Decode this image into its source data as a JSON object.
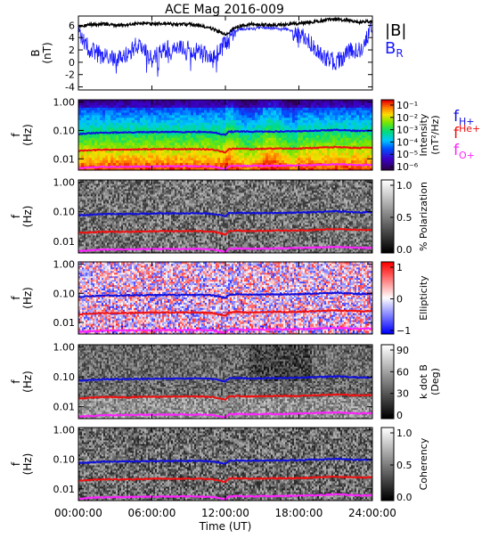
{
  "title": "ACE Mag 2016-009",
  "colors": {
    "btotal": "#000000",
    "br": "#1a1aff",
    "fH": "#1010dd",
    "fHe": "#ee1111",
    "fO": "#ff22ff",
    "axis": "#000000"
  },
  "chart_data": [
    {
      "panel": "b-field",
      "type": "line",
      "ylabel": [
        "B",
        "(nT)"
      ],
      "ylim": [
        -4.5,
        7.5
      ],
      "yticks": [
        "-4",
        "-2",
        "0",
        "2",
        "4",
        "6"
      ],
      "ytick_values": [
        -4,
        -2,
        0,
        2,
        4,
        6
      ],
      "x_hours": [
        0,
        1,
        2,
        3,
        4,
        5,
        6,
        7,
        8,
        9,
        10,
        11,
        12,
        13,
        14,
        15,
        16,
        17,
        18,
        19,
        20,
        21,
        22,
        23,
        24
      ],
      "series": [
        {
          "name": "|B|",
          "color": "#000000",
          "values": [
            5.9,
            6.1,
            6.2,
            6.0,
            6.1,
            6.3,
            6.2,
            6.3,
            6.1,
            6.2,
            5.9,
            5.4,
            4.5,
            5.8,
            6.2,
            6.1,
            6.0,
            6.2,
            6.3,
            6.5,
            6.8,
            7.0,
            6.8,
            6.5,
            6.7
          ]
        },
        {
          "name": "B_R",
          "color": "#1a1aff",
          "values": [
            4.5,
            2.0,
            1.0,
            0.5,
            1.5,
            3.0,
            0.5,
            2.0,
            2.5,
            2.0,
            1.5,
            0.5,
            3.0,
            5.3,
            5.5,
            5.6,
            5.5,
            5.4,
            4.5,
            3.0,
            1.0,
            0.0,
            1.5,
            2.5,
            5.5
          ]
        }
      ],
      "legend": [
        {
          "label": "|B|",
          "color": "#000000"
        },
        {
          "label": "B",
          "sub": "R",
          "color": "#1a1aff"
        }
      ]
    },
    {
      "panel": "intensity",
      "type": "heatmap",
      "ylabel": [
        "f",
        "(Hz)"
      ],
      "yticks": [
        "1.00",
        "0.10",
        "0.01"
      ],
      "ytick_values": [
        1.0,
        0.1,
        0.01
      ],
      "ylim": [
        0.004,
        1.2
      ],
      "colorbar": {
        "label": [
          "Intensity",
          "(nT²/Hz)"
        ],
        "labels": [
          "10⁻¹",
          "10⁻²",
          "10⁻³",
          "10⁻⁴",
          "10⁻⁵",
          "10⁻⁶"
        ],
        "scale": "rainbow"
      },
      "legend": [
        {
          "label": "f",
          "sub": "H+",
          "color": "#1010dd"
        },
        {
          "label": "f",
          "sup": "He+",
          "color": "#ee1111"
        },
        {
          "label": "f",
          "sub": "O+",
          "color": "#ff22ff"
        }
      ]
    },
    {
      "panel": "polarization",
      "type": "heatmap",
      "ylabel": [
        "f",
        "(Hz)"
      ],
      "yticks": [
        "1.00",
        "0.10",
        "0.01"
      ],
      "ytick_values": [
        1.0,
        0.1,
        0.01
      ],
      "ylim": [
        0.004,
        1.2
      ],
      "colorbar": {
        "label": [
          "% Polarization"
        ],
        "labels": [
          "1.0",
          "0.5",
          "0.0"
        ],
        "scale": "gray"
      }
    },
    {
      "panel": "ellipticity",
      "type": "heatmap",
      "ylabel": [
        "f",
        "(Hz)"
      ],
      "yticks": [
        "1.00",
        "0.10",
        "0.01"
      ],
      "ytick_values": [
        1.0,
        0.1,
        0.01
      ],
      "ylim": [
        0.004,
        1.2
      ],
      "colorbar": {
        "label": [
          "Ellipticity"
        ],
        "labels": [
          "1",
          "0",
          "−1"
        ],
        "scale": "bwr"
      }
    },
    {
      "panel": "kdotb",
      "type": "heatmap",
      "ylabel": [
        "f",
        "(Hz)"
      ],
      "yticks": [
        "1.00",
        "0.10",
        "0.01"
      ],
      "ytick_values": [
        1.0,
        0.1,
        0.01
      ],
      "ylim": [
        0.004,
        1.2
      ],
      "colorbar": {
        "label": [
          "k dot B",
          "(Deg)"
        ],
        "labels": [
          "90",
          "60",
          "30",
          "0"
        ],
        "scale": "gray"
      }
    },
    {
      "panel": "coherency",
      "type": "heatmap",
      "ylabel": [
        "f",
        "(Hz)"
      ],
      "yticks": [
        "1.00",
        "0.10",
        "0.01"
      ],
      "ytick_values": [
        1.0,
        0.1,
        0.01
      ],
      "ylim": [
        0.004,
        1.2
      ],
      "colorbar": {
        "label": [
          "Coherency"
        ],
        "labels": [
          "1.0",
          "0.5",
          "0.0"
        ],
        "scale": "gray"
      }
    }
  ],
  "gyro_lines": {
    "x_hours": [
      0,
      2,
      4,
      6,
      8,
      10,
      11,
      12,
      12.3,
      13,
      14,
      16,
      18,
      20,
      21,
      22,
      23,
      24
    ],
    "fH": [
      0.075,
      0.083,
      0.085,
      0.087,
      0.088,
      0.089,
      0.085,
      0.07,
      0.09,
      0.092,
      0.09,
      0.091,
      0.094,
      0.1,
      0.104,
      0.1,
      0.095,
      0.098
    ],
    "fHe": [
      0.019,
      0.021,
      0.021,
      0.022,
      0.022,
      0.022,
      0.021,
      0.017,
      0.022,
      0.023,
      0.022,
      0.023,
      0.023,
      0.025,
      0.026,
      0.025,
      0.024,
      0.025
    ],
    "fO": [
      0.0047,
      0.0052,
      0.0053,
      0.0054,
      0.0055,
      0.0055,
      0.0053,
      0.0043,
      0.0056,
      0.0057,
      0.0056,
      0.0057,
      0.0059,
      0.0062,
      0.0065,
      0.0062,
      0.006,
      0.0061
    ]
  },
  "xaxis": {
    "ticks": [
      "00:00:00",
      "06:00:00",
      "12:00:00",
      "18:00:00",
      "24:00:00"
    ],
    "tick_hours": [
      0,
      6,
      12,
      18,
      24
    ],
    "xlabel": "Time (UT)",
    "xlim": [
      0,
      24
    ]
  }
}
